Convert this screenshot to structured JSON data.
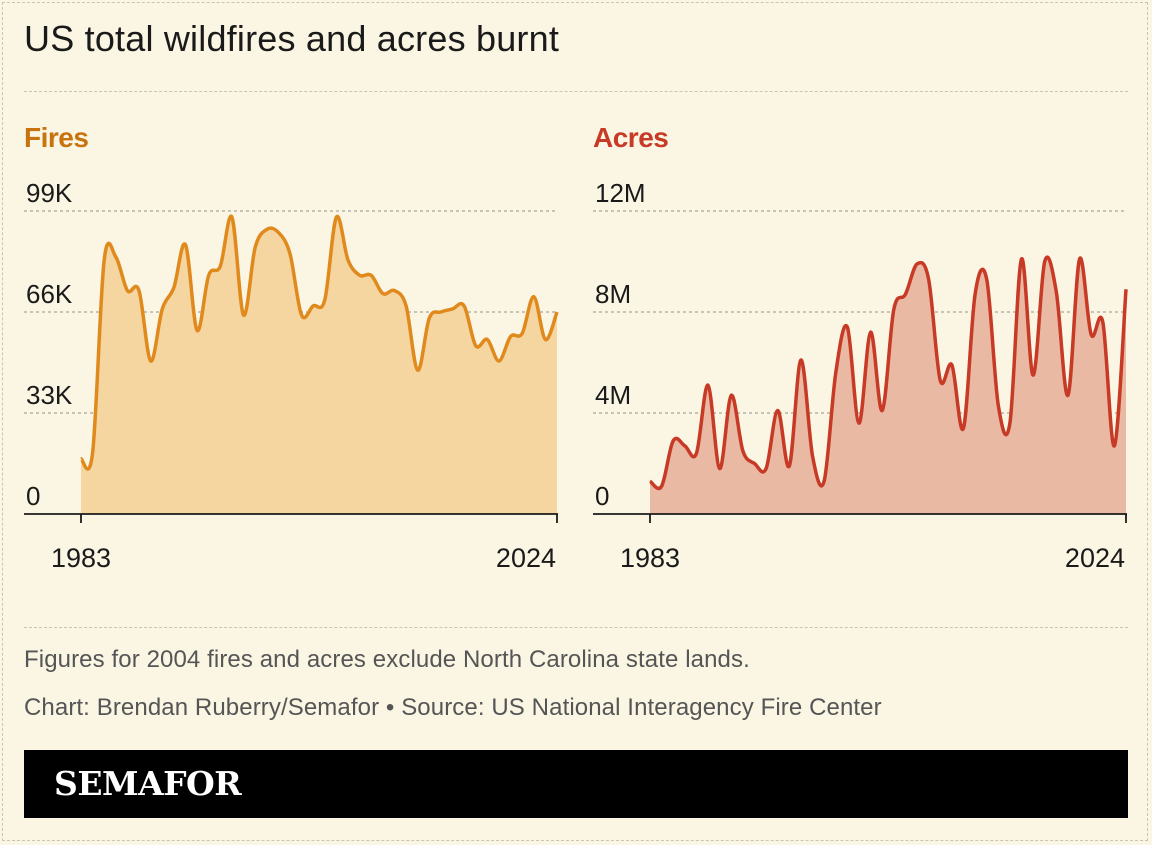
{
  "title": "US total wildfires and acres burnt",
  "note": "Figures for 2004 fires and acres exclude North Carolina state lands.",
  "credit": "Chart: Brendan Ruberry/Semafor • Source: US National Interagency Fire Center",
  "logo": "SEMAFOR",
  "colors": {
    "fires_line": "#e08a1e",
    "fires_fill": "#f5d5a0",
    "fires_title": "#c8730e",
    "acres_line": "#c63a26",
    "acres_fill": "#e9b9a4",
    "acres_title": "#c63a26"
  },
  "chart_data": [
    {
      "type": "area",
      "title": "Fires",
      "x": [
        1983,
        1984,
        1985,
        1986,
        1987,
        1988,
        1989,
        1990,
        1991,
        1992,
        1993,
        1994,
        1995,
        1996,
        1997,
        1998,
        1999,
        2000,
        2001,
        2002,
        2003,
        2004,
        2005,
        2006,
        2007,
        2008,
        2009,
        2010,
        2011,
        2012,
        2013,
        2014,
        2015,
        2016,
        2017,
        2018,
        2019,
        2020,
        2021,
        2022,
        2023,
        2024
      ],
      "values": [
        18000,
        20000,
        83000,
        84000,
        73000,
        73000,
        50000,
        67000,
        74000,
        88000,
        60000,
        78000,
        81000,
        97000,
        65000,
        87000,
        93000,
        92000,
        85000,
        65000,
        68000,
        70000,
        97000,
        83000,
        78000,
        78000,
        72000,
        73000,
        68000,
        47000,
        64000,
        66000,
        67000,
        68000,
        55000,
        57000,
        50000,
        58000,
        59000,
        71000,
        57000,
        66000
      ],
      "ylim": [
        0,
        99000
      ],
      "yticks": [
        0,
        33000,
        66000,
        99000
      ],
      "ytick_labels": [
        "0",
        "33K",
        "66K",
        "99K"
      ],
      "xtick_labels": [
        "1983",
        "2024"
      ]
    },
    {
      "type": "area",
      "title": "Acres",
      "x": [
        1983,
        1984,
        1985,
        1986,
        1987,
        1988,
        1989,
        1990,
        1991,
        1992,
        1993,
        1994,
        1995,
        1996,
        1997,
        1998,
        1999,
        2000,
        2001,
        2002,
        2003,
        2004,
        2005,
        2006,
        2007,
        2008,
        2009,
        2010,
        2011,
        2012,
        2013,
        2014,
        2015,
        2016,
        2017,
        2018,
        2019,
        2020,
        2021,
        2022,
        2023,
        2024
      ],
      "values": [
        1300000,
        1100000,
        2900000,
        2700000,
        2400000,
        5100000,
        1800000,
        4700000,
        2500000,
        2000000,
        1800000,
        4100000,
        1900000,
        6100000,
        2300000,
        1300000,
        5600000,
        7400000,
        3600000,
        7200000,
        4100000,
        8100000,
        8700000,
        9900000,
        9300000,
        5300000,
        5900000,
        3400000,
        8700000,
        9300000,
        4300000,
        3600000,
        10100000,
        5500000,
        10000000,
        8800000,
        4700000,
        10100000,
        7100000,
        7600000,
        2700000,
        8900000
      ],
      "ylim": [
        0,
        12000000
      ],
      "yticks": [
        0,
        4000000,
        8000000,
        12000000
      ],
      "ytick_labels": [
        "0",
        "4M",
        "8M",
        "12M"
      ],
      "xtick_labels": [
        "1983",
        "2024"
      ]
    }
  ]
}
